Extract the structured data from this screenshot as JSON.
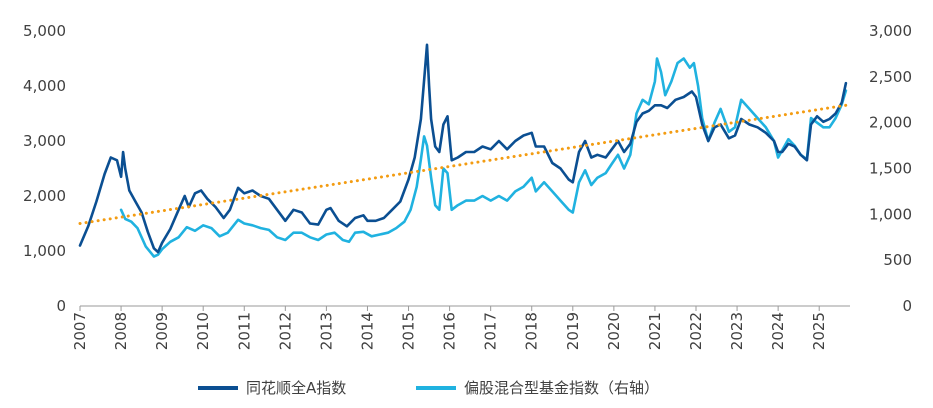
{
  "chart_data": {
    "type": "line",
    "title": "",
    "xlabel": "",
    "ylabel": "",
    "x_range": [
      2007.0,
      2025.75
    ],
    "categories": [
      "2007",
      "2008",
      "2009",
      "2010",
      "2011",
      "2012",
      "2013",
      "2014",
      "2015",
      "2016",
      "2017",
      "2018",
      "2019",
      "2020",
      "2021",
      "2022",
      "2023",
      "2024",
      "2025"
    ],
    "left_axis": {
      "range": [
        0,
        5000
      ],
      "ticks": [
        "0",
        "1,000",
        "2,000",
        "3,000",
        "4,000",
        "5,000"
      ],
      "tick_values": [
        0,
        1000,
        2000,
        3000,
        4000,
        5000
      ]
    },
    "right_axis": {
      "range": [
        0,
        3000
      ],
      "ticks": [
        "0",
        "500",
        "1,000",
        "1,500",
        "2,000",
        "2,500",
        "3,000"
      ],
      "tick_values": [
        0,
        500,
        1000,
        1500,
        2000,
        2500,
        3000
      ]
    },
    "grid": false,
    "legend_position": "bottom",
    "series": [
      {
        "name": "同花顺全A指数",
        "axis": "left",
        "color": "#0b4f92",
        "points": [
          [
            2007.0,
            1100
          ],
          [
            2007.2,
            1450
          ],
          [
            2007.4,
            1900
          ],
          [
            2007.6,
            2400
          ],
          [
            2007.75,
            2700
          ],
          [
            2007.9,
            2650
          ],
          [
            2008.0,
            2350
          ],
          [
            2008.05,
            2800
          ],
          [
            2008.1,
            2500
          ],
          [
            2008.2,
            2100
          ],
          [
            2008.35,
            1900
          ],
          [
            2008.5,
            1700
          ],
          [
            2008.65,
            1350
          ],
          [
            2008.8,
            1050
          ],
          [
            2008.9,
            980
          ],
          [
            2009.0,
            1150
          ],
          [
            2009.2,
            1400
          ],
          [
            2009.4,
            1750
          ],
          [
            2009.55,
            2000
          ],
          [
            2009.65,
            1800
          ],
          [
            2009.8,
            2050
          ],
          [
            2009.95,
            2100
          ],
          [
            2010.1,
            1950
          ],
          [
            2010.3,
            1800
          ],
          [
            2010.5,
            1600
          ],
          [
            2010.65,
            1750
          ],
          [
            2010.85,
            2150
          ],
          [
            2011.0,
            2050
          ],
          [
            2011.2,
            2100
          ],
          [
            2011.4,
            2000
          ],
          [
            2011.6,
            1950
          ],
          [
            2011.8,
            1750
          ],
          [
            2012.0,
            1550
          ],
          [
            2012.2,
            1750
          ],
          [
            2012.4,
            1700
          ],
          [
            2012.6,
            1500
          ],
          [
            2012.8,
            1480
          ],
          [
            2013.0,
            1750
          ],
          [
            2013.1,
            1780
          ],
          [
            2013.3,
            1550
          ],
          [
            2013.5,
            1450
          ],
          [
            2013.7,
            1600
          ],
          [
            2013.9,
            1650
          ],
          [
            2014.0,
            1550
          ],
          [
            2014.2,
            1550
          ],
          [
            2014.4,
            1600
          ],
          [
            2014.6,
            1750
          ],
          [
            2014.8,
            1900
          ],
          [
            2015.0,
            2300
          ],
          [
            2015.15,
            2700
          ],
          [
            2015.3,
            3400
          ],
          [
            2015.4,
            4300
          ],
          [
            2015.45,
            4750
          ],
          [
            2015.5,
            4000
          ],
          [
            2015.55,
            3400
          ],
          [
            2015.65,
            2900
          ],
          [
            2015.75,
            2800
          ],
          [
            2015.85,
            3300
          ],
          [
            2015.95,
            3450
          ],
          [
            2016.05,
            2650
          ],
          [
            2016.2,
            2700
          ],
          [
            2016.4,
            2800
          ],
          [
            2016.6,
            2800
          ],
          [
            2016.8,
            2900
          ],
          [
            2017.0,
            2850
          ],
          [
            2017.2,
            3000
          ],
          [
            2017.4,
            2850
          ],
          [
            2017.6,
            3000
          ],
          [
            2017.8,
            3100
          ],
          [
            2018.0,
            3150
          ],
          [
            2018.1,
            2900
          ],
          [
            2018.3,
            2900
          ],
          [
            2018.5,
            2600
          ],
          [
            2018.7,
            2500
          ],
          [
            2018.9,
            2300
          ],
          [
            2019.0,
            2250
          ],
          [
            2019.15,
            2800
          ],
          [
            2019.3,
            3000
          ],
          [
            2019.45,
            2700
          ],
          [
            2019.6,
            2750
          ],
          [
            2019.8,
            2700
          ],
          [
            2019.95,
            2850
          ],
          [
            2020.1,
            3000
          ],
          [
            2020.25,
            2800
          ],
          [
            2020.4,
            2950
          ],
          [
            2020.55,
            3350
          ],
          [
            2020.7,
            3500
          ],
          [
            2020.85,
            3550
          ],
          [
            2021.0,
            3650
          ],
          [
            2021.15,
            3650
          ],
          [
            2021.3,
            3600
          ],
          [
            2021.5,
            3750
          ],
          [
            2021.7,
            3800
          ],
          [
            2021.9,
            3900
          ],
          [
            2022.0,
            3800
          ],
          [
            2022.15,
            3300
          ],
          [
            2022.3,
            3000
          ],
          [
            2022.45,
            3250
          ],
          [
            2022.6,
            3300
          ],
          [
            2022.8,
            3050
          ],
          [
            2022.95,
            3100
          ],
          [
            2023.1,
            3400
          ],
          [
            2023.3,
            3300
          ],
          [
            2023.5,
            3250
          ],
          [
            2023.7,
            3150
          ],
          [
            2023.9,
            3000
          ],
          [
            2024.0,
            2800
          ],
          [
            2024.1,
            2800
          ],
          [
            2024.25,
            2950
          ],
          [
            2024.4,
            2900
          ],
          [
            2024.55,
            2750
          ],
          [
            2024.7,
            2650
          ],
          [
            2024.8,
            3300
          ],
          [
            2024.95,
            3450
          ],
          [
            2025.1,
            3350
          ],
          [
            2025.25,
            3400
          ],
          [
            2025.4,
            3500
          ],
          [
            2025.55,
            3700
          ],
          [
            2025.65,
            4050
          ]
        ]
      },
      {
        "name": "偏股混合型基金指数（右轴）",
        "axis": "right",
        "color": "#20b2e0",
        "points": [
          [
            2008.0,
            1050
          ],
          [
            2008.1,
            950
          ],
          [
            2008.25,
            920
          ],
          [
            2008.4,
            850
          ],
          [
            2008.6,
            650
          ],
          [
            2008.8,
            540
          ],
          [
            2008.9,
            560
          ],
          [
            2009.0,
            620
          ],
          [
            2009.2,
            700
          ],
          [
            2009.4,
            750
          ],
          [
            2009.6,
            860
          ],
          [
            2009.8,
            820
          ],
          [
            2010.0,
            880
          ],
          [
            2010.2,
            850
          ],
          [
            2010.4,
            760
          ],
          [
            2010.6,
            800
          ],
          [
            2010.85,
            940
          ],
          [
            2011.0,
            900
          ],
          [
            2011.2,
            880
          ],
          [
            2011.4,
            850
          ],
          [
            2011.6,
            830
          ],
          [
            2011.8,
            750
          ],
          [
            2012.0,
            720
          ],
          [
            2012.2,
            800
          ],
          [
            2012.4,
            800
          ],
          [
            2012.6,
            750
          ],
          [
            2012.8,
            720
          ],
          [
            2013.0,
            780
          ],
          [
            2013.2,
            800
          ],
          [
            2013.4,
            720
          ],
          [
            2013.55,
            700
          ],
          [
            2013.7,
            800
          ],
          [
            2013.9,
            810
          ],
          [
            2014.1,
            760
          ],
          [
            2014.3,
            780
          ],
          [
            2014.5,
            800
          ],
          [
            2014.7,
            850
          ],
          [
            2014.9,
            920
          ],
          [
            2015.05,
            1050
          ],
          [
            2015.2,
            1300
          ],
          [
            2015.3,
            1600
          ],
          [
            2015.38,
            1850
          ],
          [
            2015.45,
            1750
          ],
          [
            2015.55,
            1400
          ],
          [
            2015.65,
            1100
          ],
          [
            2015.75,
            1050
          ],
          [
            2015.85,
            1500
          ],
          [
            2015.95,
            1450
          ],
          [
            2016.05,
            1050
          ],
          [
            2016.2,
            1100
          ],
          [
            2016.4,
            1150
          ],
          [
            2016.6,
            1150
          ],
          [
            2016.8,
            1200
          ],
          [
            2017.0,
            1150
          ],
          [
            2017.2,
            1200
          ],
          [
            2017.4,
            1150
          ],
          [
            2017.6,
            1250
          ],
          [
            2017.8,
            1300
          ],
          [
            2018.0,
            1400
          ],
          [
            2018.1,
            1250
          ],
          [
            2018.3,
            1350
          ],
          [
            2018.5,
            1250
          ],
          [
            2018.7,
            1150
          ],
          [
            2018.9,
            1050
          ],
          [
            2019.0,
            1020
          ],
          [
            2019.15,
            1350
          ],
          [
            2019.3,
            1480
          ],
          [
            2019.45,
            1320
          ],
          [
            2019.6,
            1400
          ],
          [
            2019.8,
            1450
          ],
          [
            2019.95,
            1550
          ],
          [
            2020.1,
            1650
          ],
          [
            2020.25,
            1500
          ],
          [
            2020.4,
            1650
          ],
          [
            2020.55,
            2100
          ],
          [
            2020.7,
            2250
          ],
          [
            2020.85,
            2200
          ],
          [
            2021.0,
            2450
          ],
          [
            2021.05,
            2700
          ],
          [
            2021.15,
            2550
          ],
          [
            2021.25,
            2300
          ],
          [
            2021.4,
            2450
          ],
          [
            2021.55,
            2650
          ],
          [
            2021.7,
            2700
          ],
          [
            2021.85,
            2600
          ],
          [
            2021.95,
            2650
          ],
          [
            2022.05,
            2400
          ],
          [
            2022.15,
            2050
          ],
          [
            2022.3,
            1800
          ],
          [
            2022.45,
            2000
          ],
          [
            2022.6,
            2150
          ],
          [
            2022.8,
            1900
          ],
          [
            2022.95,
            1950
          ],
          [
            2023.1,
            2250
          ],
          [
            2023.3,
            2150
          ],
          [
            2023.5,
            2050
          ],
          [
            2023.7,
            1950
          ],
          [
            2023.9,
            1800
          ],
          [
            2024.0,
            1620
          ],
          [
            2024.1,
            1700
          ],
          [
            2024.25,
            1820
          ],
          [
            2024.4,
            1750
          ],
          [
            2024.55,
            1650
          ],
          [
            2024.7,
            1600
          ],
          [
            2024.8,
            2050
          ],
          [
            2024.95,
            2000
          ],
          [
            2025.1,
            1950
          ],
          [
            2025.25,
            1950
          ],
          [
            2025.4,
            2050
          ],
          [
            2025.55,
            2200
          ],
          [
            2025.65,
            2350
          ]
        ]
      },
      {
        "name": "trend",
        "axis": "left",
        "color": "#f39c12",
        "style": "dotted",
        "points": [
          [
            2007.0,
            1500
          ],
          [
            2025.65,
            3650
          ]
        ]
      }
    ]
  },
  "legend": {
    "left_label": "同花顺全A指数",
    "right_label": "偏股混合型基金指数（右轴）"
  }
}
